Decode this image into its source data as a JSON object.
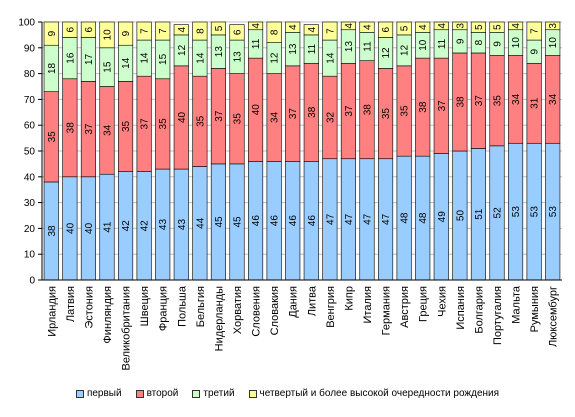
{
  "chart_data": {
    "type": "bar",
    "stacked": true,
    "title": "",
    "xlabel": "",
    "ylabel": "",
    "ylim": [
      0,
      100
    ],
    "yticks": [
      0,
      10,
      20,
      30,
      40,
      50,
      60,
      70,
      80,
      90,
      100
    ],
    "grid": true,
    "legend_position": "bottom",
    "categories": [
      "Ирландия",
      "Латвия",
      "Эстония",
      "Финляндия",
      "Великобритания",
      "Швеция",
      "Франция",
      "Польша",
      "Бельгия",
      "Нидерланды",
      "Хорватия",
      "Словения",
      "Словакия",
      "Дания",
      "Литва",
      "Венгрия",
      "Кипр",
      "Италия",
      "Германия",
      "Австрия",
      "Греция",
      "Чехия",
      "Испания",
      "Болгария",
      "Португалия",
      "Мальта",
      "Румыния",
      "Люксембург"
    ],
    "series": [
      {
        "name": "первый",
        "color": "#99ccff",
        "values": [
          38,
          40,
          40,
          41,
          42,
          42,
          43,
          43,
          44,
          45,
          45,
          46,
          46,
          46,
          46,
          47,
          47,
          47,
          47,
          48,
          48,
          49,
          50,
          51,
          52,
          53,
          53,
          53
        ]
      },
      {
        "name": "второй",
        "color": "#ff8080",
        "values": [
          35,
          38,
          37,
          34,
          35,
          37,
          35,
          40,
          35,
          37,
          35,
          40,
          34,
          37,
          38,
          32,
          37,
          38,
          35,
          35,
          38,
          37,
          38,
          37,
          35,
          34,
          31,
          34
        ]
      },
      {
        "name": "третий",
        "color": "#ccffcc",
        "values": [
          18,
          16,
          17,
          15,
          14,
          14,
          15,
          12,
          14,
          13,
          13,
          11,
          12,
          13,
          11,
          14,
          13,
          11,
          12,
          12,
          10,
          11,
          9,
          8,
          9,
          10,
          9,
          10
        ]
      },
      {
        "name": "четвертый и более высокой очередности рождения",
        "color": "#ffff99",
        "values": [
          9,
          6,
          6,
          10,
          9,
          7,
          7,
          4,
          8,
          5,
          6,
          4,
          8,
          4,
          4,
          7,
          4,
          4,
          6,
          5,
          4,
          4,
          3,
          5,
          5,
          4,
          7,
          3
        ]
      }
    ]
  }
}
